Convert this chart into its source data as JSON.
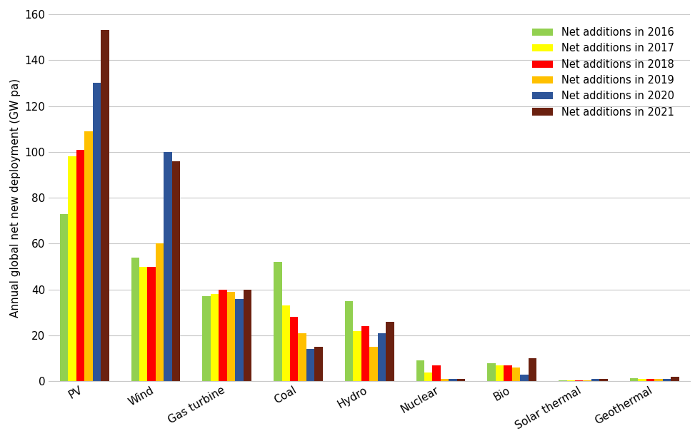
{
  "categories": [
    "PV",
    "Wind",
    "Gas turbine",
    "Coal",
    "Hydro",
    "Nuclear",
    "Bio",
    "Solar thermal",
    "Geothermal"
  ],
  "years": [
    "Net additions in 2016",
    "Net additions in 2017",
    "Net additions in 2018",
    "Net additions in 2019",
    "Net additions in 2020",
    "Net additions in 2021"
  ],
  "colors": [
    "#92d050",
    "#ffff00",
    "#ff0000",
    "#ffc000",
    "#2e5598",
    "#6b2110"
  ],
  "values": {
    "PV": [
      73,
      98,
      101,
      109,
      130,
      153
    ],
    "Wind": [
      54,
      50,
      50,
      60,
      100,
      96
    ],
    "Gas turbine": [
      37,
      38,
      40,
      39,
      36,
      40
    ],
    "Coal": [
      52,
      33,
      28,
      21,
      14,
      15
    ],
    "Hydro": [
      35,
      22,
      24,
      15,
      21,
      26
    ],
    "Nuclear": [
      9,
      4,
      7,
      1,
      1,
      1
    ],
    "Bio": [
      8,
      7,
      7,
      6,
      3,
      10
    ],
    "Solar thermal": [
      0.5,
      0.5,
      0.5,
      0.5,
      1,
      1
    ],
    "Geothermal": [
      1.5,
      1,
      1,
      1,
      1,
      2
    ]
  },
  "ylabel": "Annual global net new deployment (GW pa)",
  "ylim": [
    0,
    160
  ],
  "yticks": [
    0,
    20,
    40,
    60,
    80,
    100,
    120,
    140,
    160
  ],
  "background_color": "#ffffff",
  "grid_color": "#c8c8c8",
  "figsize": [
    9.8,
    6.18
  ],
  "dpi": 100
}
